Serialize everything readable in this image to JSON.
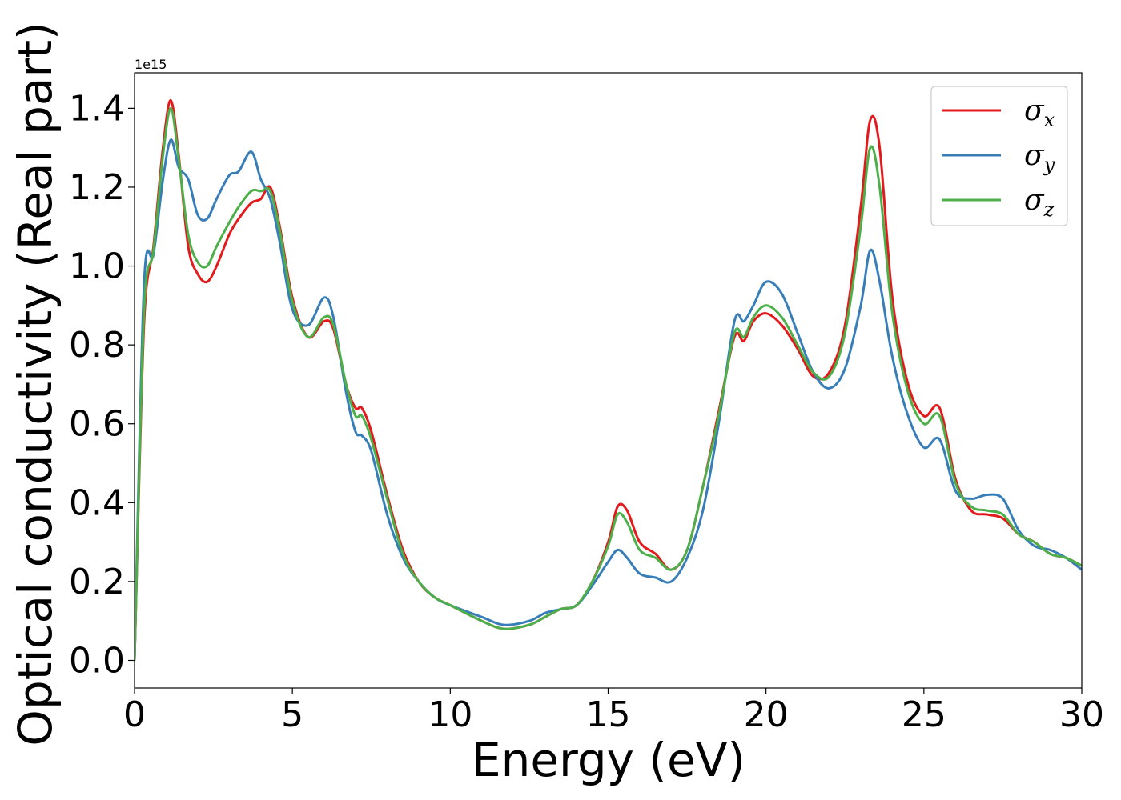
{
  "chart_data": {
    "type": "line",
    "xlabel": "Energy (eV)",
    "ylabel": "Optical conductivity (Real part)",
    "y_offset_label": "1e15",
    "xlim": [
      0,
      30
    ],
    "ylim": [
      -0.07,
      1.49
    ],
    "x_ticks": [
      0,
      5,
      10,
      15,
      20,
      25,
      30
    ],
    "y_ticks": [
      0.0,
      0.2,
      0.4,
      0.6,
      0.8,
      1.0,
      1.2,
      1.4
    ],
    "y_tick_labels": [
      "0.0",
      "0.2",
      "0.4",
      "0.6",
      "0.8",
      "1.0",
      "1.2",
      "1.4"
    ],
    "grid": false,
    "legend_position": "top-right",
    "x": [
      0,
      0.3,
      0.6,
      0.9,
      1.15,
      1.4,
      1.7,
      2.0,
      2.3,
      2.6,
      3.0,
      3.3,
      3.7,
      4.0,
      4.3,
      4.6,
      5.0,
      5.5,
      6.0,
      6.3,
      6.7,
      7.0,
      7.2,
      7.5,
      8.0,
      8.5,
      9.0,
      9.5,
      10,
      11,
      11.7,
      12.5,
      13,
      13.5,
      14,
      14.5,
      15,
      15.3,
      15.6,
      16,
      16.5,
      17,
      17.5,
      18,
      18.5,
      19,
      19.3,
      19.6,
      20,
      20.5,
      21,
      21.5,
      22,
      22.5,
      23,
      23.3,
      23.6,
      24,
      24.5,
      25,
      25.5,
      26,
      26.5,
      27,
      27.5,
      28,
      28.5,
      29,
      29.5,
      30
    ],
    "series": [
      {
        "name": "σx",
        "label_main": "σ",
        "label_sub": "x",
        "color": "#e31a1c",
        "values": [
          0,
          0.85,
          1.05,
          1.3,
          1.42,
          1.28,
          1.05,
          0.98,
          0.96,
          1.0,
          1.08,
          1.12,
          1.16,
          1.17,
          1.2,
          1.1,
          0.92,
          0.82,
          0.86,
          0.84,
          0.7,
          0.64,
          0.64,
          0.58,
          0.42,
          0.28,
          0.2,
          0.16,
          0.14,
          0.1,
          0.08,
          0.09,
          0.11,
          0.13,
          0.14,
          0.2,
          0.3,
          0.39,
          0.38,
          0.3,
          0.27,
          0.23,
          0.28,
          0.44,
          0.63,
          0.82,
          0.81,
          0.86,
          0.88,
          0.85,
          0.79,
          0.72,
          0.73,
          0.85,
          1.15,
          1.37,
          1.3,
          0.92,
          0.7,
          0.62,
          0.64,
          0.46,
          0.38,
          0.37,
          0.36,
          0.32,
          0.3,
          0.27,
          0.26,
          0.24
        ]
      },
      {
        "name": "σy",
        "label_main": "σ",
        "label_sub": "y",
        "color": "#377eb8",
        "values": [
          0,
          0.95,
          1.03,
          1.22,
          1.32,
          1.25,
          1.22,
          1.13,
          1.12,
          1.17,
          1.23,
          1.24,
          1.29,
          1.22,
          1.17,
          1.06,
          0.89,
          0.85,
          0.92,
          0.87,
          0.68,
          0.58,
          0.57,
          0.53,
          0.37,
          0.26,
          0.2,
          0.16,
          0.14,
          0.11,
          0.09,
          0.1,
          0.12,
          0.13,
          0.14,
          0.19,
          0.25,
          0.28,
          0.26,
          0.22,
          0.21,
          0.2,
          0.26,
          0.38,
          0.6,
          0.86,
          0.86,
          0.9,
          0.96,
          0.93,
          0.83,
          0.73,
          0.69,
          0.74,
          0.9,
          1.04,
          0.96,
          0.77,
          0.62,
          0.54,
          0.56,
          0.43,
          0.41,
          0.42,
          0.41,
          0.33,
          0.29,
          0.28,
          0.26,
          0.23
        ]
      },
      {
        "name": "σz",
        "label_main": "σ",
        "label_sub": "z",
        "color": "#4daf4a",
        "values": [
          0,
          0.88,
          1.04,
          1.28,
          1.4,
          1.27,
          1.08,
          1.01,
          1.0,
          1.05,
          1.11,
          1.15,
          1.19,
          1.19,
          1.19,
          1.09,
          0.91,
          0.82,
          0.87,
          0.85,
          0.7,
          0.62,
          0.62,
          0.56,
          0.41,
          0.27,
          0.2,
          0.16,
          0.14,
          0.1,
          0.08,
          0.09,
          0.11,
          0.13,
          0.14,
          0.2,
          0.29,
          0.37,
          0.35,
          0.28,
          0.26,
          0.23,
          0.28,
          0.44,
          0.62,
          0.83,
          0.82,
          0.87,
          0.9,
          0.87,
          0.8,
          0.73,
          0.72,
          0.83,
          1.1,
          1.3,
          1.2,
          0.88,
          0.68,
          0.6,
          0.62,
          0.45,
          0.39,
          0.38,
          0.37,
          0.32,
          0.3,
          0.27,
          0.26,
          0.24
        ]
      }
    ]
  }
}
